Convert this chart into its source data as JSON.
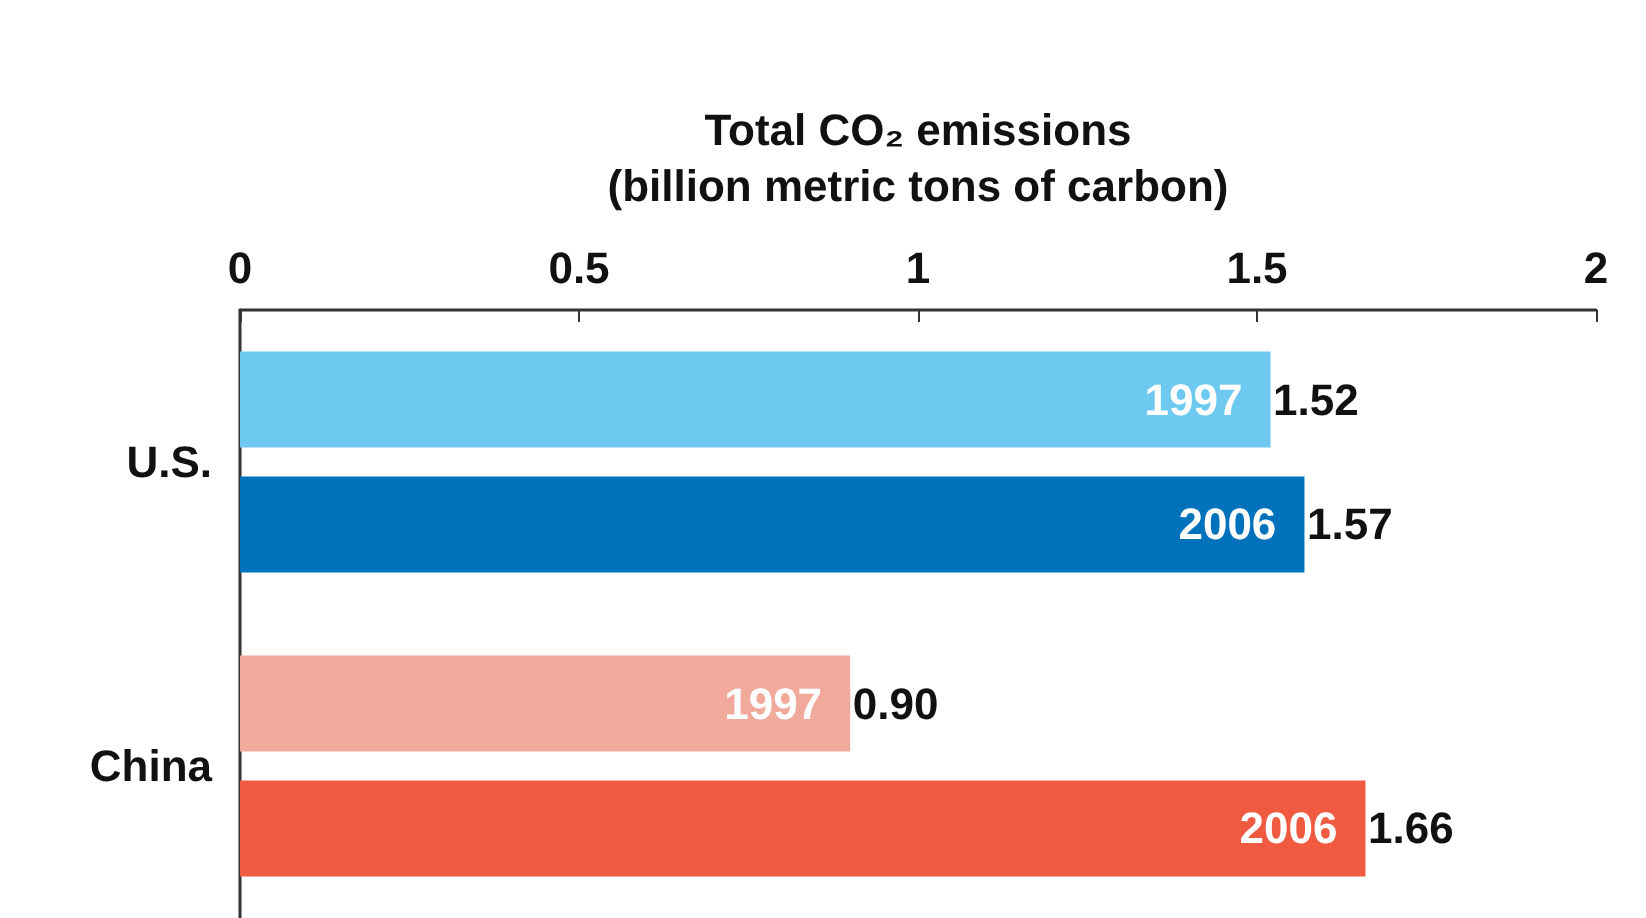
{
  "chart_data": {
    "type": "bar",
    "orientation": "horizontal",
    "xlabel": "Total CO₂ emissions\n(billion metric tons of carbon)",
    "categories": [
      "U.S.",
      "China"
    ],
    "xlim": [
      0,
      2
    ],
    "xticks": [
      0,
      0.5,
      1,
      1.5,
      2
    ],
    "grid": false,
    "legend": false,
    "series": [
      {
        "name": "1997",
        "colors": [
          "#6dc9f0",
          "#f0a99b"
        ],
        "values": [
          1.52,
          0.9
        ],
        "value_labels": [
          "1.52",
          "0.90"
        ]
      },
      {
        "name": "2006",
        "colors": [
          "#0071bb",
          "#f05a41"
        ],
        "values": [
          1.57,
          1.66
        ],
        "value_labels": [
          "1.57",
          "1.66"
        ]
      }
    ]
  }
}
